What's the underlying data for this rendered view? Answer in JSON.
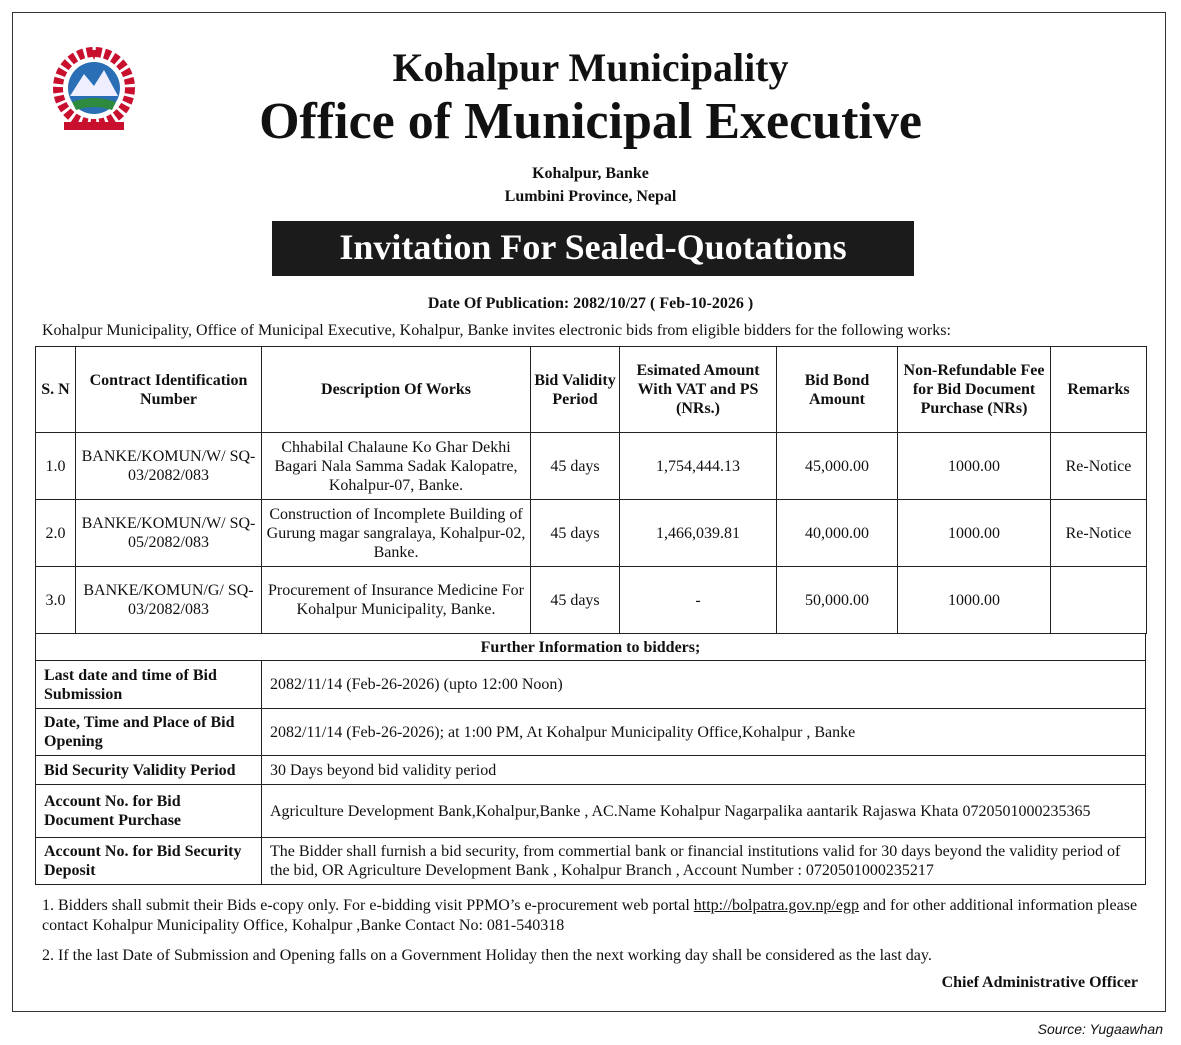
{
  "header": {
    "municipality": "Kohalpur Municipality",
    "office": "Office of Municipal Executive",
    "address1": "Kohalpur, Banke",
    "address2": "Lumbini Province, Nepal",
    "banner": "Invitation For Sealed-Quotations",
    "publication": "Date Of  Publication: 2082/10/27 ( Feb-10-2026 )",
    "intro": "Kohalpur Municipality, Office of Municipal Executive, Kohalpur, Banke invites electronic bids from eligible bidders for the following works:"
  },
  "works_table": {
    "headers": [
      "S. N",
      "Contract Identification Number",
      "Description Of Works",
      "Bid Validity Period",
      "Esimated Amount With  VAT and PS (NRs.)",
      "Bid Bond Amount",
      "Non-Refundable Fee for Bid Document Purchase (NRs)",
      "Remarks"
    ],
    "rows": [
      [
        "1.0",
        "BANKE/KOMUN/W/ SQ-03/2082/083",
        "Chhabilal Chalaune Ko Ghar Dekhi Bagari Nala Samma Sadak Kalopatre, Kohalpur-07, Banke.",
        "45 days",
        "1,754,444.13",
        "45,000.00",
        "1000.00",
        "Re-Notice"
      ],
      [
        "2.0",
        "BANKE/KOMUN/W/ SQ-05/2082/083",
        "Construction of Incomplete Building of Gurung magar sangralaya, Kohalpur-02, Banke.",
        "45 days",
        "1,466,039.81",
        "40,000.00",
        "1000.00",
        "Re-Notice"
      ],
      [
        "3.0",
        "BANKE/KOMUN/G/ SQ-03/2082/083",
        "Procurement of Insurance Medicine For Kohalpur Municipality, Banke.",
        "45 days",
        "-",
        "50,000.00",
        "1000.00",
        ""
      ]
    ]
  },
  "further": {
    "title": "Further Information to bidders;",
    "rows": [
      [
        "Last date and time of Bid Submission",
        "2082/11/14 (Feb-26-2026) (upto 12:00 Noon)"
      ],
      [
        "Date, Time and Place of Bid Opening",
        "2082/11/14 (Feb-26-2026); at 1:00 PM, At Kohalpur  Municipality Office,Kohalpur , Banke"
      ],
      [
        "Bid Security Validity Period",
        "30 Days beyond bid validity period"
      ],
      [
        "Account No. for Bid Document Purchase",
        "Agriculture Development Bank,Kohalpur,Banke , AC.Name  Kohalpur Nagarpalika aantarik Rajaswa Khata 0720501000235365"
      ],
      [
        "Account No. for Bid Security Deposit",
        "The Bidder shall furnish a bid security, from commertial bank or financial institutions valid for 30 days beyond the validity period of the bid, OR Agriculture Development Bank , Kohalpur Branch , Account Number : 0720501000235217"
      ]
    ]
  },
  "notes": {
    "n1_a": "1. Bidders shall submit their Bids e-copy only. For e-bidding visit PPMO’s e-procurement web portal ",
    "n1_link": "http://bolpatra.gov.np/egp",
    "n1_b": " and for other additional information please contact Kohalpur  Municipality Office, Kohalpur ,Banke  Contact No: 081-540318",
    "n2": "2. If the last Date of Submission and Opening falls on a Government Holiday then the next working day shall be considered as the last day."
  },
  "signature": "Chief Administrative Officer",
  "source": "Source: Yugaawhan"
}
